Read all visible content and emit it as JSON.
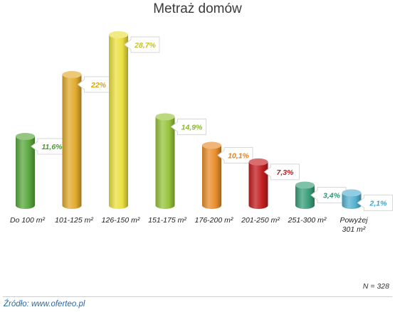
{
  "chart_data": {
    "type": "bar",
    "title": "Metraż domów",
    "categories": [
      "Do 100 m²",
      "101-125 m²",
      "126-150 m²",
      "151-175 m²",
      "176-200 m²",
      "201-250 m²",
      "251-300 m²",
      "Powyżej 301 m²"
    ],
    "values": [
      11.6,
      22,
      28.7,
      14.9,
      10.1,
      7.3,
      3.4,
      2.1
    ],
    "value_labels": [
      "11,6%",
      "22%",
      "28,7%",
      "14,9%",
      "10,1%",
      "7,3%",
      "3,4%",
      "2,1%"
    ],
    "colors": [
      "#5aa83f",
      "#e2ab2e",
      "#ebe040",
      "#98c43c",
      "#e98f2d",
      "#c31f20",
      "#3aa07b",
      "#55b1d0"
    ],
    "label_colors": [
      "#4a9a32",
      "#d6a21f",
      "#c8c21a",
      "#8ab830",
      "#de8420",
      "#b81b1c",
      "#2e9870",
      "#3ea6c7"
    ],
    "ylim": [
      0,
      30
    ],
    "grid": false,
    "legend": "none"
  },
  "footer": {
    "source": "Źródło: www.oferteo.pl",
    "n": "N = 328"
  }
}
